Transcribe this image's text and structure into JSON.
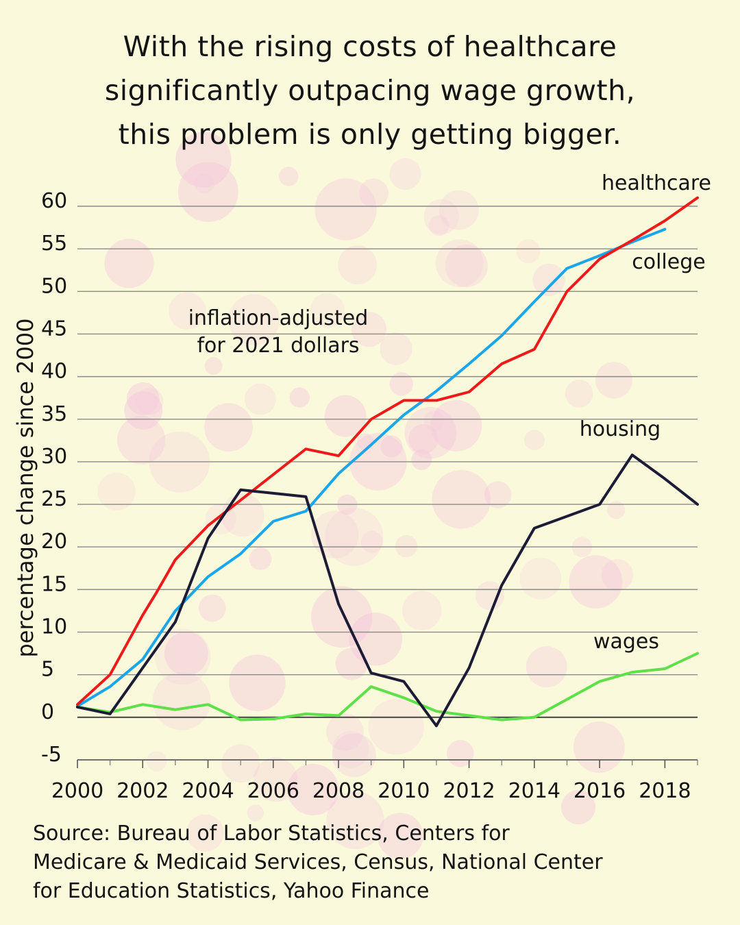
{
  "title_lines": [
    "With the rising costs of healthcare",
    "significantly outpacing wage growth,",
    "this problem is only getting bigger."
  ],
  "source_lines": [
    "Source: Bureau of Labor Statistics, Centers for",
    "Medicare & Medicaid Services, Census, National Center",
    "for Education Statistics, Yahoo Finance"
  ],
  "colors": {
    "background": "#fbf9dc",
    "healthcare": "#ee1a1a",
    "college": "#1aa6ea",
    "housing": "#1c1c36",
    "wages": "#5fe04a",
    "gridline": "#8a8a8a"
  },
  "chart_data": {
    "type": "line",
    "title": "",
    "xlabel": "",
    "ylabel": "percentage change since 2000",
    "annotation_lines": [
      "inflation-adjusted",
      "for 2021 dollars"
    ],
    "xlim": [
      2000,
      2019
    ],
    "ylim": [
      -5,
      60
    ],
    "x_ticks": [
      2000,
      2002,
      2004,
      2006,
      2008,
      2010,
      2012,
      2014,
      2016,
      2018
    ],
    "y_ticks": [
      -5,
      0,
      5,
      10,
      15,
      20,
      25,
      30,
      35,
      40,
      45,
      50,
      55,
      60
    ],
    "y_tick_labels": [
      "-5",
      "0",
      "5",
      "10",
      "15",
      "20",
      "25",
      "30",
      "35",
      "40",
      "45",
      "50",
      "55",
      "60"
    ],
    "grid": true,
    "legend": "labels at line ends",
    "series": [
      {
        "name": "healthcare",
        "x": [
          2000,
          2001,
          2002,
          2002.4,
          2003,
          2004,
          2005,
          2006,
          2007,
          2008,
          2009,
          2010,
          2011,
          2012,
          2013,
          2014,
          2015,
          2016,
          2017,
          2018,
          2019
        ],
        "y": [
          1.5,
          5,
          12,
          14.5,
          18.5,
          22.5,
          25.5,
          28.5,
          31.5,
          30.7,
          35,
          37.2,
          37.2,
          38.2,
          41.5,
          43.2,
          50,
          53.8,
          56,
          58.3,
          61
        ]
      },
      {
        "name": "college",
        "x": [
          2000,
          2001,
          2002,
          2003,
          2004,
          2005,
          2006,
          2007,
          2008,
          2009,
          2010,
          2011,
          2012,
          2013,
          2014,
          2015,
          2016,
          2017,
          2018
        ],
        "y": [
          1.3,
          3.6,
          6.8,
          12.5,
          16.5,
          19.2,
          23,
          24.2,
          28.6,
          32,
          35.5,
          38.3,
          41.5,
          44.8,
          48.8,
          52.7,
          54.2,
          55.8,
          57.3
        ]
      },
      {
        "name": "housing",
        "x": [
          2000,
          2001,
          2002,
          2003,
          2004,
          2005,
          2006,
          2007,
          2008,
          2009,
          2010,
          2011,
          2012,
          2013,
          2014,
          2015,
          2016,
          2017,
          2018,
          2019
        ],
        "y": [
          1.2,
          0.4,
          5.8,
          11.2,
          21,
          26.7,
          26.3,
          25.9,
          13.3,
          5.2,
          4.2,
          -1,
          5.8,
          15.5,
          22.2,
          23.6,
          25,
          30.8,
          28,
          25
        ]
      },
      {
        "name": "wages",
        "x": [
          2000,
          2001,
          2002,
          2003,
          2004,
          2005,
          2006,
          2007,
          2008,
          2009,
          2010,
          2011,
          2012,
          2013,
          2014,
          2015,
          2016,
          2017,
          2018,
          2019
        ],
        "y": [
          1.2,
          0.6,
          1.5,
          0.9,
          1.5,
          -0.3,
          -0.2,
          0.4,
          0.2,
          3.6,
          2.3,
          0.7,
          0.2,
          -0.3,
          0,
          2.1,
          4.2,
          5.3,
          5.7,
          7.5
        ]
      }
    ]
  }
}
